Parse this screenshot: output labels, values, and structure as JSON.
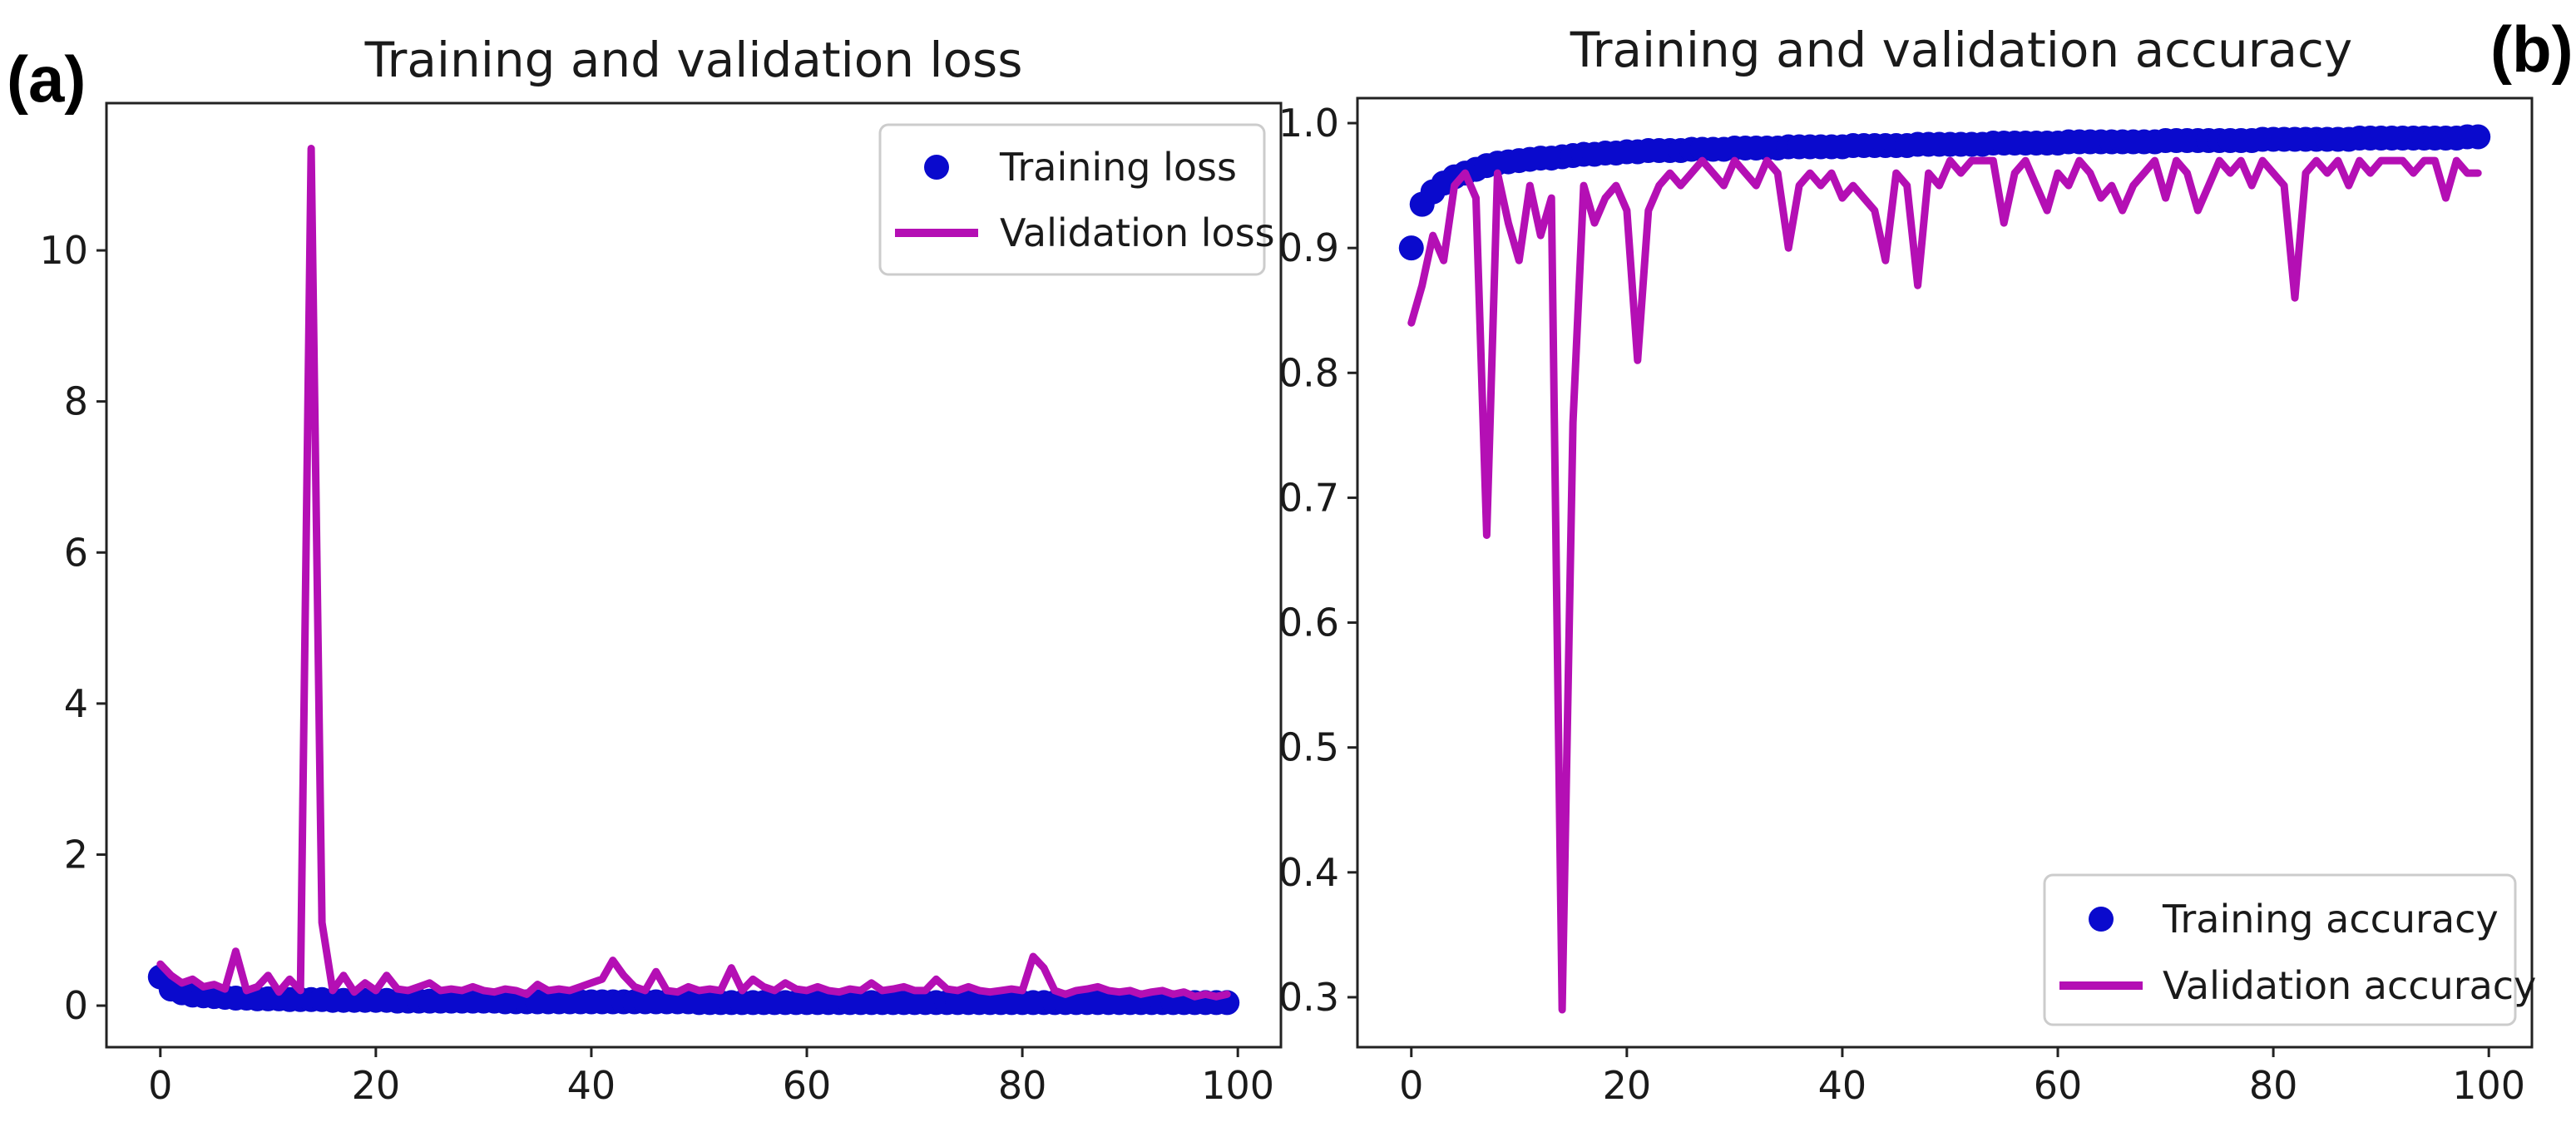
{
  "colors": {
    "training": "#0a0acd",
    "validation": "#b40fb4",
    "axes": "#222222",
    "legend_border": "#cccccc"
  },
  "chart_data": [
    {
      "panel_label": "(a)",
      "type": "line",
      "title": "Training and validation loss",
      "xlabel": "",
      "ylabel": "",
      "xlim": [
        -5,
        104
      ],
      "ylim": [
        -0.55,
        11.95
      ],
      "xticks": [
        0,
        20,
        40,
        60,
        80,
        100
      ],
      "yticks": [
        0,
        2,
        4,
        6,
        8,
        10
      ],
      "grid": false,
      "legend_position": "top-right",
      "series": [
        {
          "name": "Training loss",
          "style": "markers",
          "x": [
            0,
            1,
            2,
            3,
            4,
            5,
            6,
            7,
            8,
            9,
            10,
            11,
            12,
            13,
            14,
            15,
            16,
            17,
            18,
            19,
            20,
            21,
            22,
            23,
            24,
            25,
            26,
            27,
            28,
            29,
            30,
            31,
            32,
            33,
            34,
            35,
            36,
            37,
            38,
            39,
            40,
            41,
            42,
            43,
            44,
            45,
            46,
            47,
            48,
            49,
            50,
            51,
            52,
            53,
            54,
            55,
            56,
            57,
            58,
            59,
            60,
            61,
            62,
            63,
            64,
            65,
            66,
            67,
            68,
            69,
            70,
            71,
            72,
            73,
            74,
            75,
            76,
            77,
            78,
            79,
            80,
            81,
            82,
            83,
            84,
            85,
            86,
            87,
            88,
            89,
            90,
            91,
            92,
            93,
            94,
            95,
            96,
            97,
            98,
            99
          ],
          "y": [
            0.38,
            0.22,
            0.17,
            0.14,
            0.13,
            0.12,
            0.11,
            0.1,
            0.1,
            0.09,
            0.09,
            0.09,
            0.08,
            0.08,
            0.08,
            0.08,
            0.07,
            0.07,
            0.07,
            0.07,
            0.07,
            0.07,
            0.06,
            0.06,
            0.06,
            0.06,
            0.06,
            0.06,
            0.06,
            0.06,
            0.06,
            0.06,
            0.05,
            0.05,
            0.05,
            0.05,
            0.05,
            0.05,
            0.05,
            0.05,
            0.05,
            0.05,
            0.05,
            0.05,
            0.05,
            0.05,
            0.05,
            0.05,
            0.05,
            0.05,
            0.04,
            0.04,
            0.04,
            0.04,
            0.04,
            0.04,
            0.04,
            0.04,
            0.04,
            0.04,
            0.04,
            0.04,
            0.04,
            0.04,
            0.04,
            0.04,
            0.04,
            0.04,
            0.04,
            0.04,
            0.04,
            0.04,
            0.04,
            0.04,
            0.04,
            0.04,
            0.04,
            0.04,
            0.04,
            0.04,
            0.04,
            0.04,
            0.04,
            0.04,
            0.04,
            0.04,
            0.04,
            0.04,
            0.04,
            0.04,
            0.04,
            0.04,
            0.04,
            0.04,
            0.04,
            0.04,
            0.04,
            0.04,
            0.04,
            0.04
          ]
        },
        {
          "name": "Validation loss",
          "style": "line",
          "x": [
            0,
            1,
            2,
            3,
            4,
            5,
            6,
            7,
            8,
            9,
            10,
            11,
            12,
            13,
            14,
            15,
            16,
            17,
            18,
            19,
            20,
            21,
            22,
            23,
            24,
            25,
            26,
            27,
            28,
            29,
            30,
            31,
            32,
            33,
            34,
            35,
            36,
            37,
            38,
            39,
            40,
            41,
            42,
            43,
            44,
            45,
            46,
            47,
            48,
            49,
            50,
            51,
            52,
            53,
            54,
            55,
            56,
            57,
            58,
            59,
            60,
            61,
            62,
            63,
            64,
            65,
            66,
            67,
            68,
            69,
            70,
            71,
            72,
            73,
            74,
            75,
            76,
            77,
            78,
            79,
            80,
            81,
            82,
            83,
            84,
            85,
            86,
            87,
            88,
            89,
            90,
            91,
            92,
            93,
            94,
            95,
            96,
            97,
            98,
            99
          ],
          "y": [
            0.55,
            0.4,
            0.3,
            0.35,
            0.25,
            0.28,
            0.22,
            0.72,
            0.2,
            0.25,
            0.4,
            0.18,
            0.35,
            0.2,
            11.35,
            1.1,
            0.2,
            0.4,
            0.18,
            0.3,
            0.2,
            0.4,
            0.22,
            0.2,
            0.25,
            0.3,
            0.2,
            0.22,
            0.2,
            0.25,
            0.2,
            0.18,
            0.22,
            0.2,
            0.15,
            0.28,
            0.2,
            0.22,
            0.2,
            0.25,
            0.3,
            0.35,
            0.6,
            0.4,
            0.25,
            0.2,
            0.45,
            0.2,
            0.18,
            0.25,
            0.2,
            0.22,
            0.2,
            0.5,
            0.2,
            0.35,
            0.25,
            0.2,
            0.3,
            0.22,
            0.2,
            0.25,
            0.2,
            0.18,
            0.22,
            0.2,
            0.3,
            0.2,
            0.22,
            0.25,
            0.2,
            0.2,
            0.35,
            0.22,
            0.2,
            0.25,
            0.2,
            0.18,
            0.2,
            0.22,
            0.2,
            0.65,
            0.5,
            0.2,
            0.15,
            0.2,
            0.22,
            0.25,
            0.2,
            0.18,
            0.2,
            0.15,
            0.18,
            0.2,
            0.15,
            0.18,
            0.12,
            0.15,
            0.12,
            0.15
          ]
        }
      ]
    },
    {
      "panel_label": "(b)",
      "type": "line",
      "title": "Training and validation accuracy",
      "xlabel": "",
      "ylabel": "",
      "xlim": [
        -5,
        104
      ],
      "ylim": [
        0.26,
        1.02
      ],
      "xticks": [
        0,
        20,
        40,
        60,
        80,
        100
      ],
      "yticks": [
        0.3,
        0.4,
        0.5,
        0.6,
        0.7,
        0.8,
        0.9,
        1.0
      ],
      "ytick_labels": [
        "0.3",
        "0.4",
        "0.5",
        "0.6",
        "0.7",
        "0.8",
        "0.9",
        "1.0"
      ],
      "grid": false,
      "legend_position": "bottom-right",
      "series": [
        {
          "name": "Training accuracy",
          "style": "markers",
          "x": [
            0,
            1,
            2,
            3,
            4,
            5,
            6,
            7,
            8,
            9,
            10,
            11,
            12,
            13,
            14,
            15,
            16,
            17,
            18,
            19,
            20,
            21,
            22,
            23,
            24,
            25,
            26,
            27,
            28,
            29,
            30,
            31,
            32,
            33,
            34,
            35,
            36,
            37,
            38,
            39,
            40,
            41,
            42,
            43,
            44,
            45,
            46,
            47,
            48,
            49,
            50,
            51,
            52,
            53,
            54,
            55,
            56,
            57,
            58,
            59,
            60,
            61,
            62,
            63,
            64,
            65,
            66,
            67,
            68,
            69,
            70,
            71,
            72,
            73,
            74,
            75,
            76,
            77,
            78,
            79,
            80,
            81,
            82,
            83,
            84,
            85,
            86,
            87,
            88,
            89,
            90,
            91,
            92,
            93,
            94,
            95,
            96,
            97,
            98,
            99
          ],
          "y": [
            0.9,
            0.935,
            0.945,
            0.952,
            0.957,
            0.96,
            0.963,
            0.966,
            0.968,
            0.969,
            0.97,
            0.971,
            0.972,
            0.972,
            0.973,
            0.974,
            0.975,
            0.975,
            0.976,
            0.976,
            0.977,
            0.977,
            0.978,
            0.978,
            0.978,
            0.978,
            0.979,
            0.979,
            0.979,
            0.979,
            0.98,
            0.98,
            0.98,
            0.98,
            0.98,
            0.981,
            0.981,
            0.981,
            0.981,
            0.981,
            0.981,
            0.982,
            0.982,
            0.982,
            0.982,
            0.982,
            0.982,
            0.983,
            0.983,
            0.983,
            0.983,
            0.983,
            0.983,
            0.983,
            0.984,
            0.984,
            0.984,
            0.984,
            0.984,
            0.984,
            0.984,
            0.985,
            0.985,
            0.985,
            0.985,
            0.985,
            0.985,
            0.985,
            0.985,
            0.985,
            0.986,
            0.986,
            0.986,
            0.986,
            0.986,
            0.986,
            0.986,
            0.986,
            0.986,
            0.987,
            0.987,
            0.987,
            0.987,
            0.987,
            0.987,
            0.987,
            0.987,
            0.987,
            0.988,
            0.988,
            0.988,
            0.988,
            0.988,
            0.988,
            0.988,
            0.988,
            0.988,
            0.988,
            0.989,
            0.989
          ]
        },
        {
          "name": "Validation accuracy",
          "style": "line",
          "x": [
            0,
            1,
            2,
            3,
            4,
            5,
            6,
            7,
            8,
            9,
            10,
            11,
            12,
            13,
            14,
            15,
            16,
            17,
            18,
            19,
            20,
            21,
            22,
            23,
            24,
            25,
            26,
            27,
            28,
            29,
            30,
            31,
            32,
            33,
            34,
            35,
            36,
            37,
            38,
            39,
            40,
            41,
            42,
            43,
            44,
            45,
            46,
            47,
            48,
            49,
            50,
            51,
            52,
            53,
            54,
            55,
            56,
            57,
            58,
            59,
            60,
            61,
            62,
            63,
            64,
            65,
            66,
            67,
            68,
            69,
            70,
            71,
            72,
            73,
            74,
            75,
            76,
            77,
            78,
            79,
            80,
            81,
            82,
            83,
            84,
            85,
            86,
            87,
            88,
            89,
            90,
            91,
            92,
            93,
            94,
            95,
            96,
            97,
            98,
            99
          ],
          "y": [
            0.84,
            0.87,
            0.91,
            0.89,
            0.95,
            0.96,
            0.94,
            0.67,
            0.96,
            0.92,
            0.89,
            0.95,
            0.91,
            0.94,
            0.29,
            0.76,
            0.95,
            0.92,
            0.94,
            0.95,
            0.93,
            0.81,
            0.93,
            0.95,
            0.96,
            0.95,
            0.96,
            0.97,
            0.96,
            0.95,
            0.97,
            0.96,
            0.95,
            0.97,
            0.96,
            0.9,
            0.95,
            0.96,
            0.95,
            0.96,
            0.94,
            0.95,
            0.94,
            0.93,
            0.89,
            0.96,
            0.95,
            0.87,
            0.96,
            0.95,
            0.97,
            0.96,
            0.97,
            0.97,
            0.97,
            0.92,
            0.96,
            0.97,
            0.95,
            0.93,
            0.96,
            0.95,
            0.97,
            0.96,
            0.94,
            0.95,
            0.93,
            0.95,
            0.96,
            0.97,
            0.94,
            0.97,
            0.96,
            0.93,
            0.95,
            0.97,
            0.96,
            0.97,
            0.95,
            0.97,
            0.96,
            0.95,
            0.86,
            0.96,
            0.97,
            0.96,
            0.97,
            0.95,
            0.97,
            0.96,
            0.97,
            0.97,
            0.97,
            0.96,
            0.97,
            0.97,
            0.94,
            0.97,
            0.96,
            0.96
          ]
        }
      ]
    }
  ]
}
